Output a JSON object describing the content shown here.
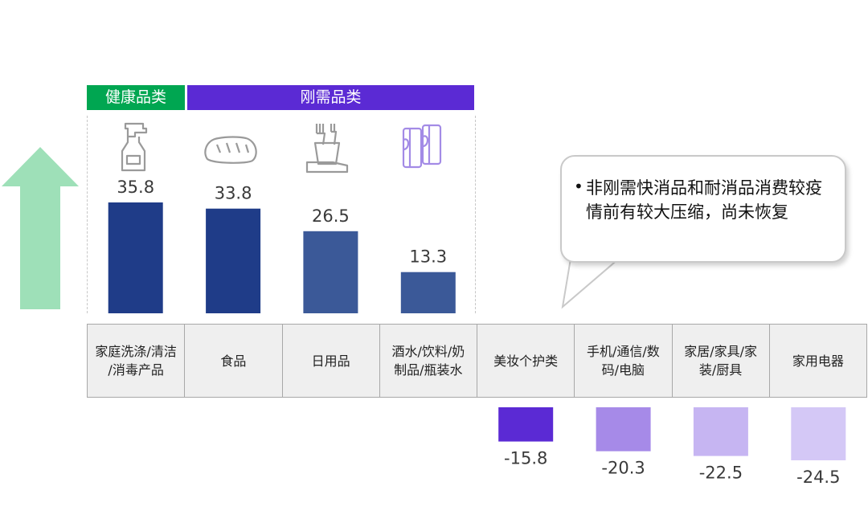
{
  "groups": {
    "health": "健康品类",
    "rigid": "刚需品类"
  },
  "callout": {
    "bullet": "•",
    "text": "非刚需快消品和耐消品消费较疫情前有较大压缩，尚未恢复"
  },
  "chart_data": {
    "type": "bar",
    "categories": [
      "家庭洗涤/清洁/消毒产品",
      "食品",
      "日用品",
      "酒水/饮料/奶制品/瓶装水",
      "美妆个护类",
      "手机/通信/数码/电脑",
      "家居/家具/家装/厨具",
      "家用电器"
    ],
    "category_lines": [
      [
        "家庭洗涤/清洁",
        "/消毒产品"
      ],
      [
        "食品"
      ],
      [
        "日用品"
      ],
      [
        "酒水/饮料/奶",
        "制品/瓶装水"
      ],
      [
        "美妆个护类"
      ],
      [
        "手机/通信/数",
        "码/电脑"
      ],
      [
        "家居/家具/家",
        "装/厨具"
      ],
      [
        "家用电器"
      ]
    ],
    "values": [
      35.8,
      33.8,
      26.5,
      13.3,
      -15.8,
      -20.3,
      -22.5,
      -24.5
    ],
    "value_labels": [
      "35.8",
      "33.8",
      "26.5",
      "13.3",
      "-15.8",
      "-20.3",
      "-22.5",
      "-24.5"
    ],
    "colors": [
      "#1f3c88",
      "#1f3c88",
      "#3b5998",
      "#3b5998",
      "#5b2ad4",
      "#a68ae8",
      "#c6b5f2",
      "#d4c8f6"
    ],
    "icons": [
      "spray-bottle-icon",
      "bread-icon",
      "toothbrush-cup-icon",
      "cans-icon"
    ],
    "arrow_color": "#9ee0b8",
    "title": "",
    "xlabel": "",
    "ylabel": ""
  }
}
